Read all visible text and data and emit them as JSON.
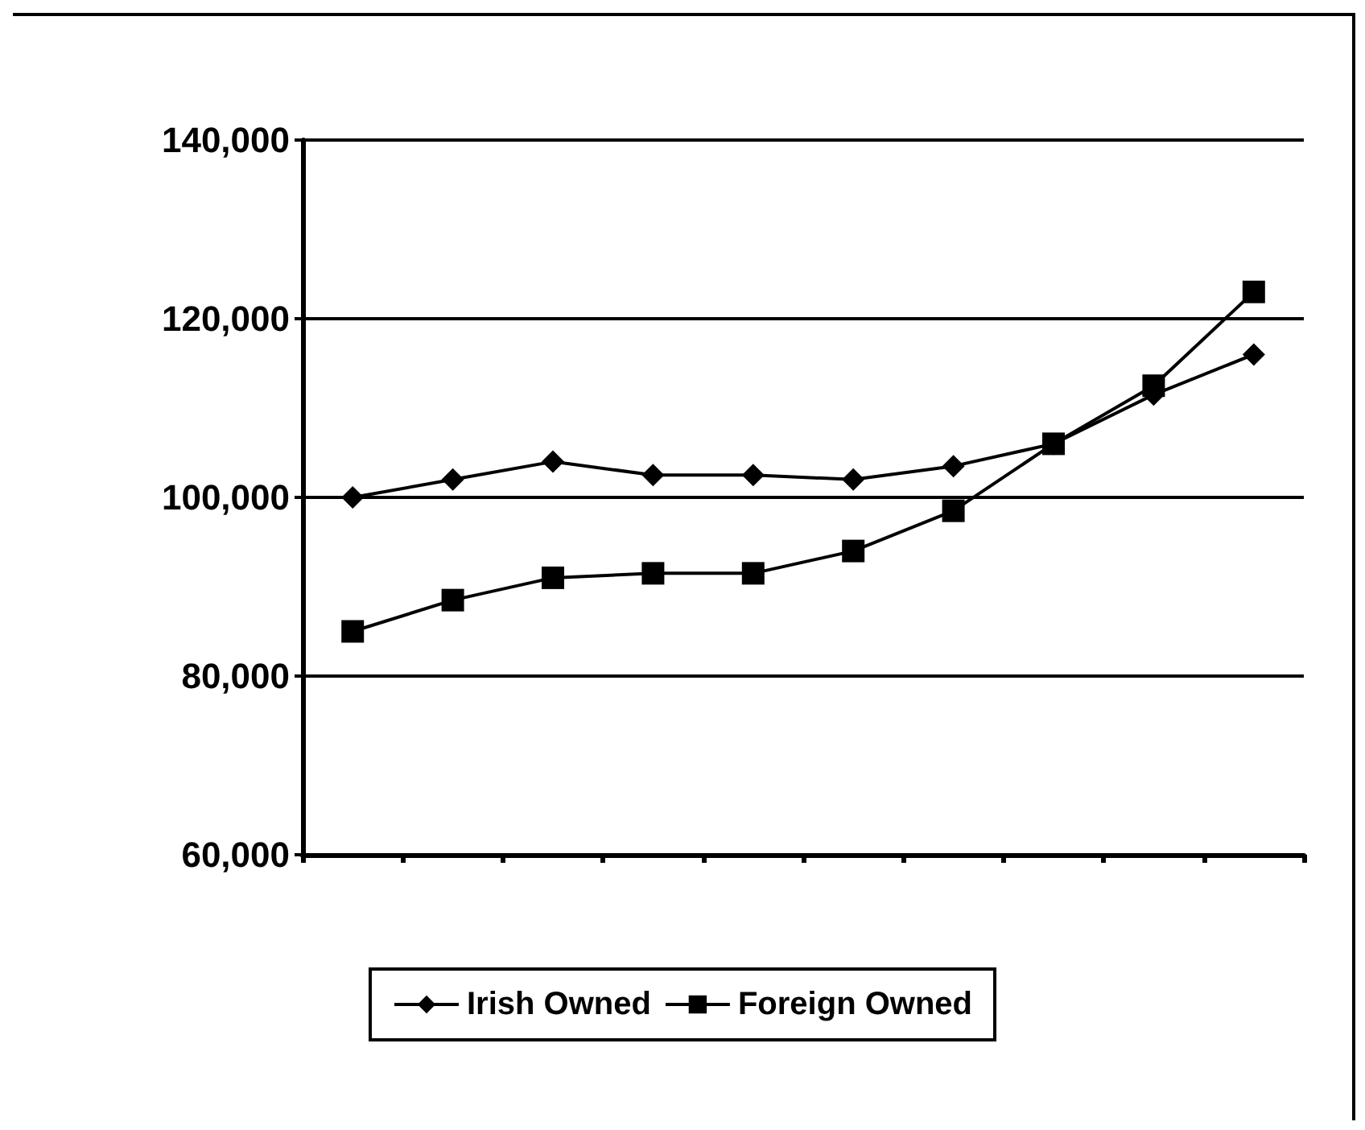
{
  "chart_data": {
    "type": "line",
    "categories": [
      null,
      null,
      null,
      null,
      null,
      null,
      null,
      null,
      null,
      null
    ],
    "series": [
      {
        "name": "Irish Owned",
        "color": "#000000",
        "marker": "diamond",
        "values": [
          100000,
          102000,
          104000,
          102500,
          102500,
          102000,
          103500,
          106000,
          111500,
          116000
        ]
      },
      {
        "name": "Foreign Owned",
        "color": "#000000",
        "marker": "square",
        "values": [
          85000,
          88500,
          91000,
          91500,
          91500,
          94000,
          98500,
          106000,
          112500,
          123000
        ]
      }
    ],
    "ylim": [
      60000,
      140000
    ],
    "yticks": [
      {
        "value": 60000,
        "label": "60,000"
      },
      {
        "value": 80000,
        "label": "80,000"
      },
      {
        "value": 100000,
        "label": "100,000"
      },
      {
        "value": 120000,
        "label": "120,000"
      },
      {
        "value": 140000,
        "label": "140,000"
      }
    ],
    "grid": "y",
    "legend": "bottom",
    "line_style": "solid"
  }
}
